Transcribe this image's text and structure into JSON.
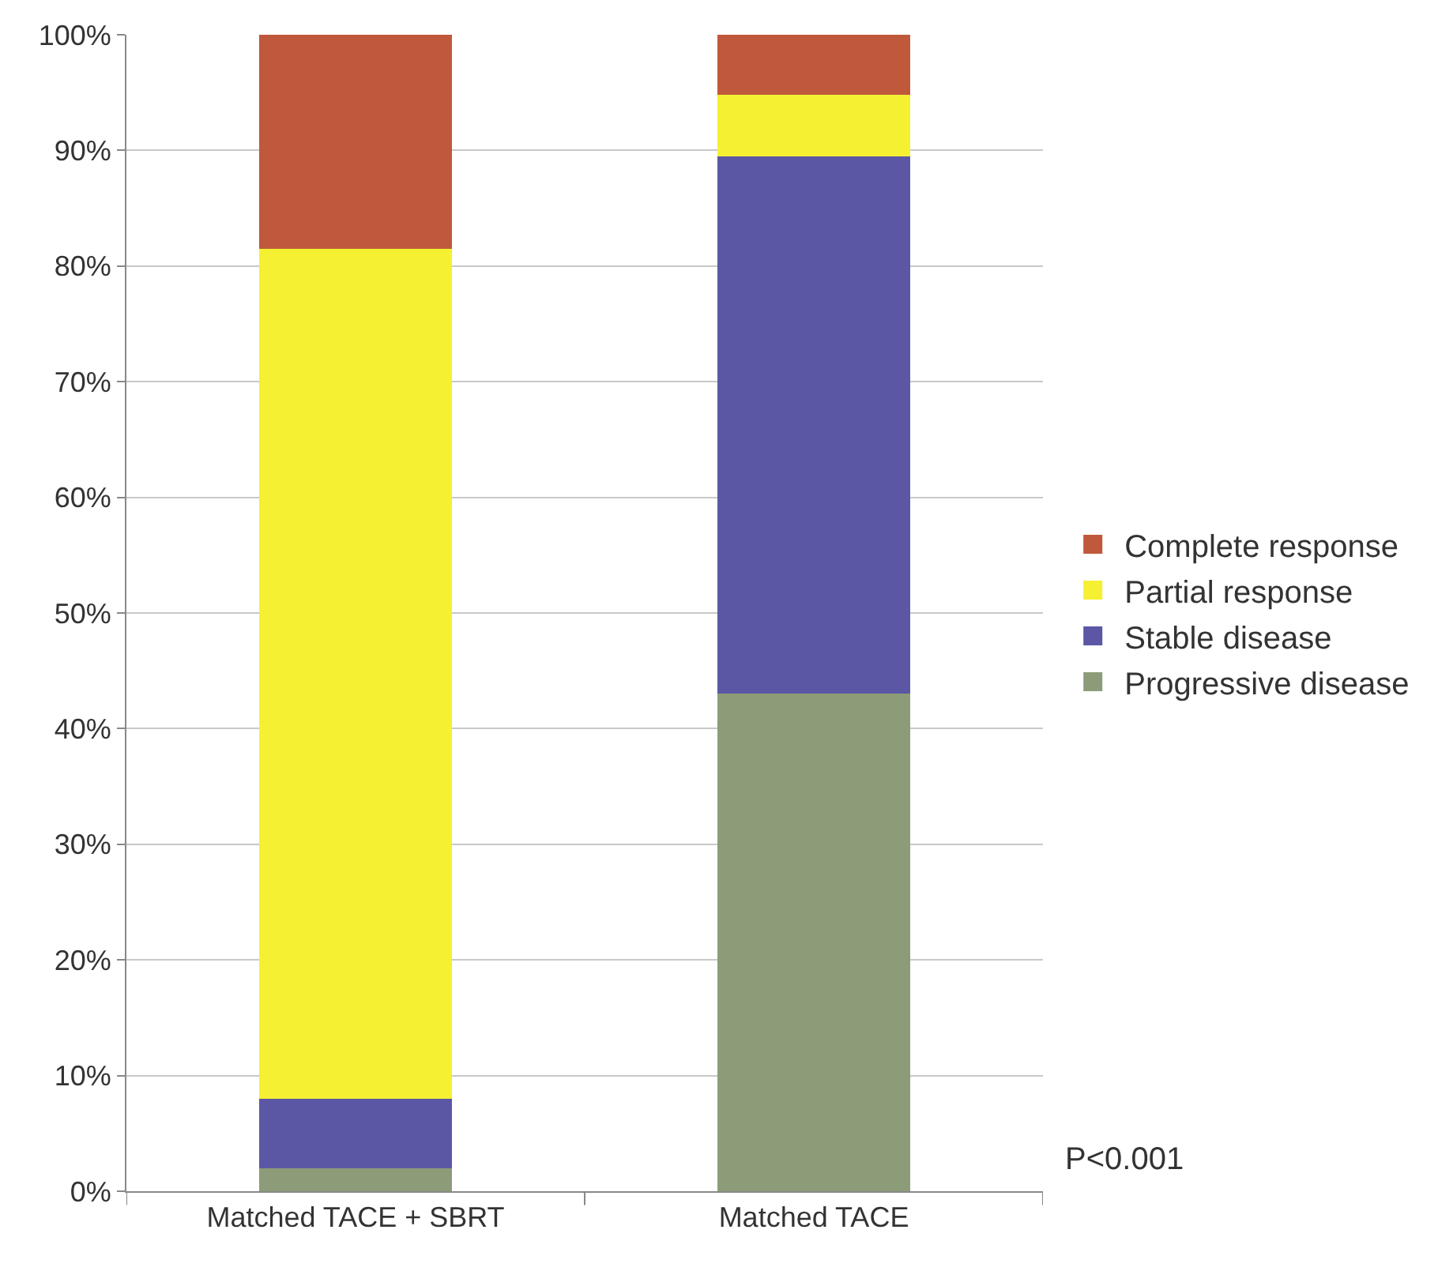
{
  "chart_data": {
    "type": "bar",
    "stacked": true,
    "categories": [
      "Matched TACE + SBRT",
      "Matched TACE"
    ],
    "series": [
      {
        "name": "Progressive disease",
        "color": "#8c9c78",
        "values": [
          2,
          43
        ]
      },
      {
        "name": "Stable disease",
        "color": "#5b57a5",
        "values": [
          6,
          46.5
        ]
      },
      {
        "name": "Partial response",
        "color": "#f5f032",
        "values": [
          73.5,
          5.3
        ]
      },
      {
        "name": "Complete response",
        "color": "#c0583c",
        "values": [
          18.5,
          5.2
        ]
      }
    ],
    "ylim": [
      0,
      100
    ],
    "yticks": [
      {
        "value": 0,
        "label": "0%"
      },
      {
        "value": 10,
        "label": "10%"
      },
      {
        "value": 20,
        "label": "20%"
      },
      {
        "value": 30,
        "label": "30%"
      },
      {
        "value": 40,
        "label": "40%"
      },
      {
        "value": 50,
        "label": "50%"
      },
      {
        "value": 60,
        "label": "60%"
      },
      {
        "value": 70,
        "label": "70%"
      },
      {
        "value": 80,
        "label": "80%"
      },
      {
        "value": 90,
        "label": "90%"
      },
      {
        "value": 100,
        "label": "100%"
      }
    ],
    "grid": "y",
    "legend": "right",
    "annotations": [
      "P<0.001"
    ]
  }
}
